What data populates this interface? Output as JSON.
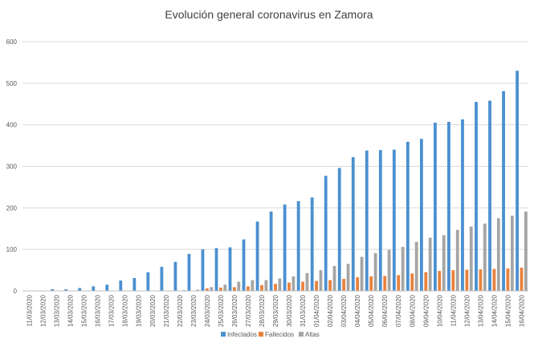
{
  "chart_data": {
    "type": "bar",
    "title": "Evolución general coronavirus en Zamora",
    "xlabel": "",
    "ylabel": "",
    "ylim": [
      0,
      600
    ],
    "yticks": [
      "0",
      "100",
      "200",
      "300",
      "400",
      "500",
      "600"
    ],
    "grid": true,
    "legend_position": "bottom",
    "categories": [
      "11/03/2020",
      "12/03/2020",
      "13/03/2020",
      "14/03/2020",
      "15/03/2020",
      "16/03/2020",
      "17/03/2020",
      "18/03/2020",
      "19/03/2020",
      "20/03/2020",
      "21/03/2020",
      "22/03/2020",
      "23/03/2020",
      "24/03/2020",
      "25/03/2020",
      "26/03/2020",
      "27/03/2020",
      "28/03/2020",
      "29/03/2020",
      "30/03/2020",
      "31/03/2020",
      "01/04/2020",
      "02/04/2020",
      "03/04/2020",
      "04/04/2020",
      "05/04/2020",
      "06/04/2020",
      "07/04/2020",
      "08/04/2020",
      "09/04/2020",
      "10/04/2020",
      "11/04/2020",
      "12/04/2020",
      "13/04/2020",
      "14/04/2020",
      "15/04/2020",
      "16/04/2020"
    ],
    "series": [
      {
        "name": "Infectados",
        "color": "#4a90d0",
        "values": [
          1,
          1,
          4,
          4,
          7,
          11,
          15,
          25,
          31,
          45,
          58,
          70,
          89,
          100,
          103,
          105,
          124,
          167,
          191,
          208,
          216,
          225,
          277,
          296,
          322,
          338,
          339,
          340,
          359,
          366,
          405,
          407,
          413,
          455,
          458,
          481,
          530
        ]
      },
      {
        "name": "Fallecidos",
        "color": "#e8823e",
        "values": [
          0,
          0,
          0,
          0,
          0,
          0,
          0,
          0,
          0,
          0,
          0,
          1,
          1,
          6,
          8,
          9,
          11,
          14,
          17,
          20,
          22,
          24,
          26,
          29,
          33,
          35,
          36,
          38,
          42,
          45,
          48,
          50,
          51,
          52,
          53,
          54,
          56
        ]
      },
      {
        "name": "Altas",
        "color": "#a5a5a5",
        "values": [
          0,
          1,
          0,
          0,
          0,
          0,
          0,
          0,
          0,
          0,
          1,
          2,
          3,
          9,
          15,
          22,
          26,
          26,
          30,
          35,
          43,
          50,
          60,
          65,
          82,
          91,
          99,
          106,
          118,
          128,
          134,
          147,
          155,
          162,
          175,
          181,
          191
        ]
      }
    ]
  }
}
